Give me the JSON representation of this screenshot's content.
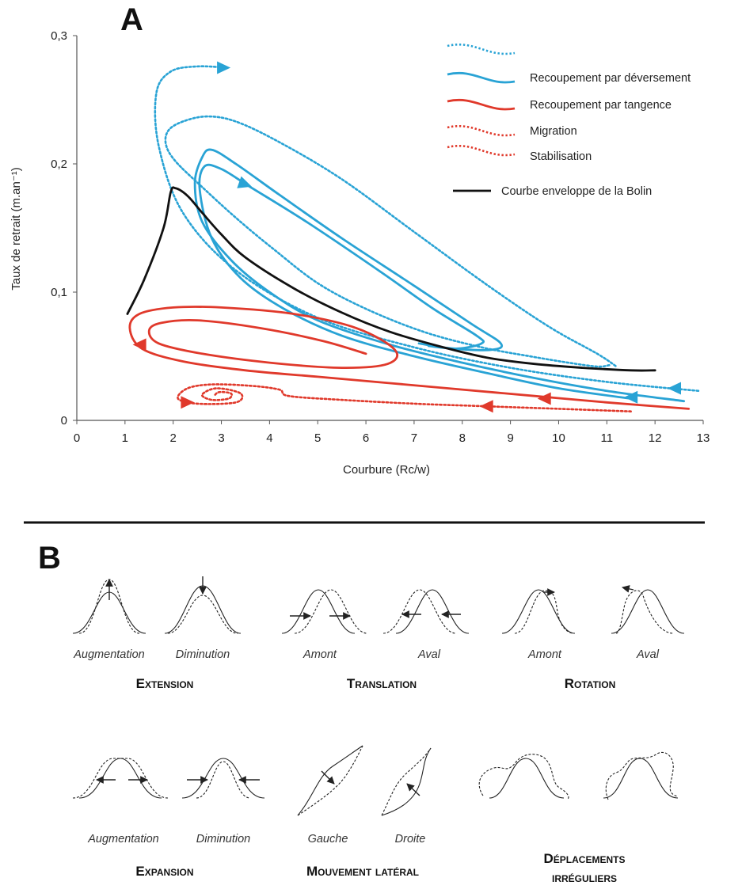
{
  "colors": {
    "blue": "#29a3d5",
    "red": "#e0392b",
    "black": "#111111",
    "axis": "#555555"
  },
  "panel_a": {
    "letter": "A",
    "chart_data": {
      "type": "line",
      "xlabel": "Courbure (Rc/w)",
      "ylabel": "Taux de retrait (m.an⁻¹)",
      "xlim": [
        0,
        13
      ],
      "ylim": [
        0,
        0.3
      ],
      "x_ticks": [
        "0",
        "1",
        "2",
        "3",
        "4",
        "5",
        "6",
        "7",
        "8",
        "9",
        "10",
        "11",
        "12",
        "13"
      ],
      "y_ticks": [
        "0",
        "0,1",
        "0,2",
        "0,3"
      ],
      "legend": [
        {
          "label": "Recoupement par déversement",
          "color": "#29a3d5",
          "style": "solid+dotted"
        },
        {
          "label": "Recoupement par tangence",
          "color": "#e0392b",
          "style": "solid"
        },
        {
          "label": "Migration",
          "color": "#e0392b",
          "style": "dotted"
        },
        {
          "label": "Stabilisation",
          "color": "#e0392b",
          "style": "dotted"
        },
        {
          "label": "Courbe enveloppe de la Bolin",
          "color": "#111111",
          "style": "solid"
        }
      ],
      "series": [
        {
          "name": "Courbe enveloppe de la Bolin",
          "color": "#111111",
          "dash": false,
          "x": [
            1.05,
            1.4,
            1.8,
            1.95,
            2.05,
            2.3,
            2.6,
            3.0,
            3.5,
            4.5,
            5.5,
            6.5,
            7.5,
            8.5,
            9.5,
            10.5,
            11.5,
            12.0
          ],
          "y": [
            0.083,
            0.11,
            0.15,
            0.178,
            0.181,
            0.175,
            0.162,
            0.145,
            0.127,
            0.103,
            0.084,
            0.069,
            0.058,
            0.049,
            0.044,
            0.041,
            0.039,
            0.039
          ]
        },
        {
          "color": "#29a3d5",
          "dash": false,
          "x": [
            12.6,
            11,
            9.5,
            8,
            6.5,
            5,
            4,
            3.2,
            2.6,
            2.45,
            2.6,
            2.8,
            3.3,
            4.2,
            5.5,
            7,
            8.2,
            8.8,
            8.6,
            7.8,
            7.1
          ],
          "y": [
            0.015,
            0.023,
            0.033,
            0.045,
            0.059,
            0.078,
            0.1,
            0.125,
            0.155,
            0.185,
            0.205,
            0.211,
            0.2,
            0.176,
            0.142,
            0.105,
            0.075,
            0.06,
            0.055,
            0.056,
            0.06
          ]
        },
        {
          "color": "#29a3d5",
          "dash": false,
          "x": [
            11.5,
            10,
            8.5,
            7,
            5.5,
            4.3,
            3.4,
            2.8,
            2.55,
            2.65,
            3,
            3.6,
            4.8,
            6.3,
            7.4,
            8.3,
            8.4,
            7.9,
            7.3
          ],
          "y": [
            0.017,
            0.025,
            0.037,
            0.05,
            0.066,
            0.087,
            0.111,
            0.142,
            0.18,
            0.198,
            0.196,
            0.182,
            0.154,
            0.116,
            0.087,
            0.066,
            0.06,
            0.056,
            0.058
          ]
        },
        {
          "color": "#29a3d5",
          "dash": true,
          "x": [
            12.9,
            11,
            9,
            7,
            5,
            3.3,
            2.2,
            1.7,
            1.65,
            1.95,
            2.5,
            3.1
          ],
          "y": [
            0.023,
            0.03,
            0.041,
            0.057,
            0.08,
            0.117,
            0.162,
            0.214,
            0.255,
            0.272,
            0.276,
            0.275
          ]
        },
        {
          "color": "#29a3d5",
          "dash": true,
          "x": [
            11.05,
            10.8,
            10.2,
            9.4,
            8.4,
            7.2,
            6,
            5,
            4.1,
            3.3,
            2.6,
            2.05,
            1.85,
            1.9,
            2.2,
            2.7,
            3.3,
            4.2,
            5.5,
            7,
            8.5,
            9.8,
            10.8,
            11.2
          ],
          "y": [
            0.043,
            0.042,
            0.045,
            0.05,
            0.057,
            0.069,
            0.087,
            0.107,
            0.133,
            0.158,
            0.182,
            0.202,
            0.215,
            0.226,
            0.233,
            0.237,
            0.233,
            0.217,
            0.188,
            0.147,
            0.106,
            0.073,
            0.052,
            0.042
          ]
        },
        {
          "color": "#e0392b",
          "dash": false,
          "x": [
            12.7,
            11,
            9.5,
            8,
            6.5,
            5,
            3.5,
            2.2,
            1.35,
            1.1,
            1.3,
            2,
            3,
            4.5,
            5.8,
            6.6,
            6.45,
            5.5,
            4,
            2.6,
            1.7,
            1.5,
            1.75,
            2.5,
            3.8,
            5.1,
            6
          ],
          "y": [
            0.009,
            0.014,
            0.019,
            0.024,
            0.029,
            0.034,
            0.039,
            0.046,
            0.056,
            0.072,
            0.083,
            0.088,
            0.088,
            0.083,
            0.072,
            0.055,
            0.044,
            0.041,
            0.045,
            0.052,
            0.06,
            0.07,
            0.076,
            0.078,
            0.072,
            0.062,
            0.052
          ]
        },
        {
          "color": "#e0392b",
          "dash": true,
          "x": [
            11.5,
            10,
            8.5,
            7,
            5.5,
            4.4,
            4.2,
            3.6,
            2.8,
            2.3,
            2.1,
            2.5,
            3.3,
            3.4,
            2.9,
            2.6,
            2.8,
            3.15,
            3.2,
            2.95,
            2.85
          ],
          "y": [
            0.007,
            0.009,
            0.011,
            0.013,
            0.016,
            0.019,
            0.024,
            0.027,
            0.028,
            0.025,
            0.017,
            0.013,
            0.014,
            0.021,
            0.025,
            0.02,
            0.016,
            0.017,
            0.021,
            0.022,
            0.019
          ]
        }
      ],
      "arrows": [
        {
          "x": 3.05,
          "y": 0.275,
          "dir": [
            1,
            0
          ],
          "color": "#29a3d5"
        },
        {
          "x": 3.5,
          "y": 0.184,
          "dir": [
            1,
            -0.35
          ],
          "color": "#29a3d5"
        },
        {
          "x": 12.4,
          "y": 0.025,
          "dir": [
            -1,
            0
          ],
          "color": "#29a3d5"
        },
        {
          "x": 11.5,
          "y": 0.018,
          "dir": [
            -1,
            0
          ],
          "color": "#29a3d5"
        },
        {
          "x": 1.3,
          "y": 0.059,
          "dir": [
            -1,
            0
          ],
          "color": "#e0392b"
        },
        {
          "x": 9.7,
          "y": 0.017,
          "dir": [
            -1,
            0
          ],
          "color": "#e0392b"
        },
        {
          "x": 8.5,
          "y": 0.011,
          "dir": [
            -1,
            0
          ],
          "color": "#e0392b"
        },
        {
          "x": 2.3,
          "y": 0.014,
          "dir": [
            1,
            0
          ],
          "color": "#e0392b"
        }
      ]
    }
  },
  "panel_b": {
    "letter": "B",
    "groups": [
      {
        "title": "Extension",
        "items": [
          "Augmentation",
          "Diminution"
        ]
      },
      {
        "title": "Translation",
        "items": [
          "Amont",
          "Aval"
        ]
      },
      {
        "title": "Rotation",
        "items": [
          "Amont",
          "Aval"
        ]
      },
      {
        "title": "Expansion",
        "items": [
          "Augmentation",
          "Diminution"
        ]
      },
      {
        "title": "Mouvement latéral",
        "items": [
          "Gauche",
          "Droite"
        ]
      },
      {
        "title_line1": "Déplacements",
        "title_line2": "irréguliers"
      }
    ]
  }
}
